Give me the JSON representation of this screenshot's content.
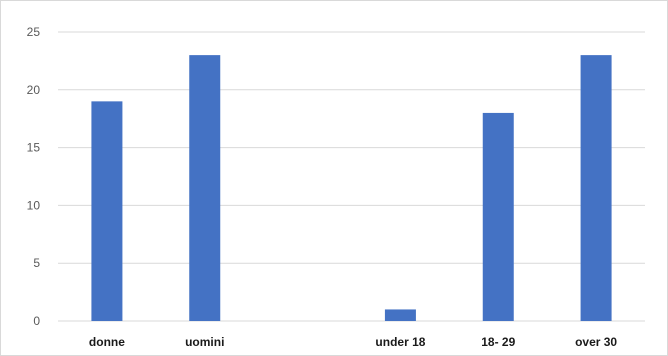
{
  "chart_data": {
    "type": "bar",
    "title": "",
    "xlabel": "",
    "ylabel": "",
    "categories": [
      "donne",
      "uomini",
      "",
      "under 18",
      "18- 29",
      "over 30"
    ],
    "values": [
      19,
      23,
      null,
      1,
      18,
      23
    ],
    "ylim": [
      0,
      25
    ],
    "yticks": [
      0,
      5,
      10,
      15,
      20,
      25
    ],
    "grid": true,
    "legend": "none",
    "bar_color": "#4472c4"
  }
}
